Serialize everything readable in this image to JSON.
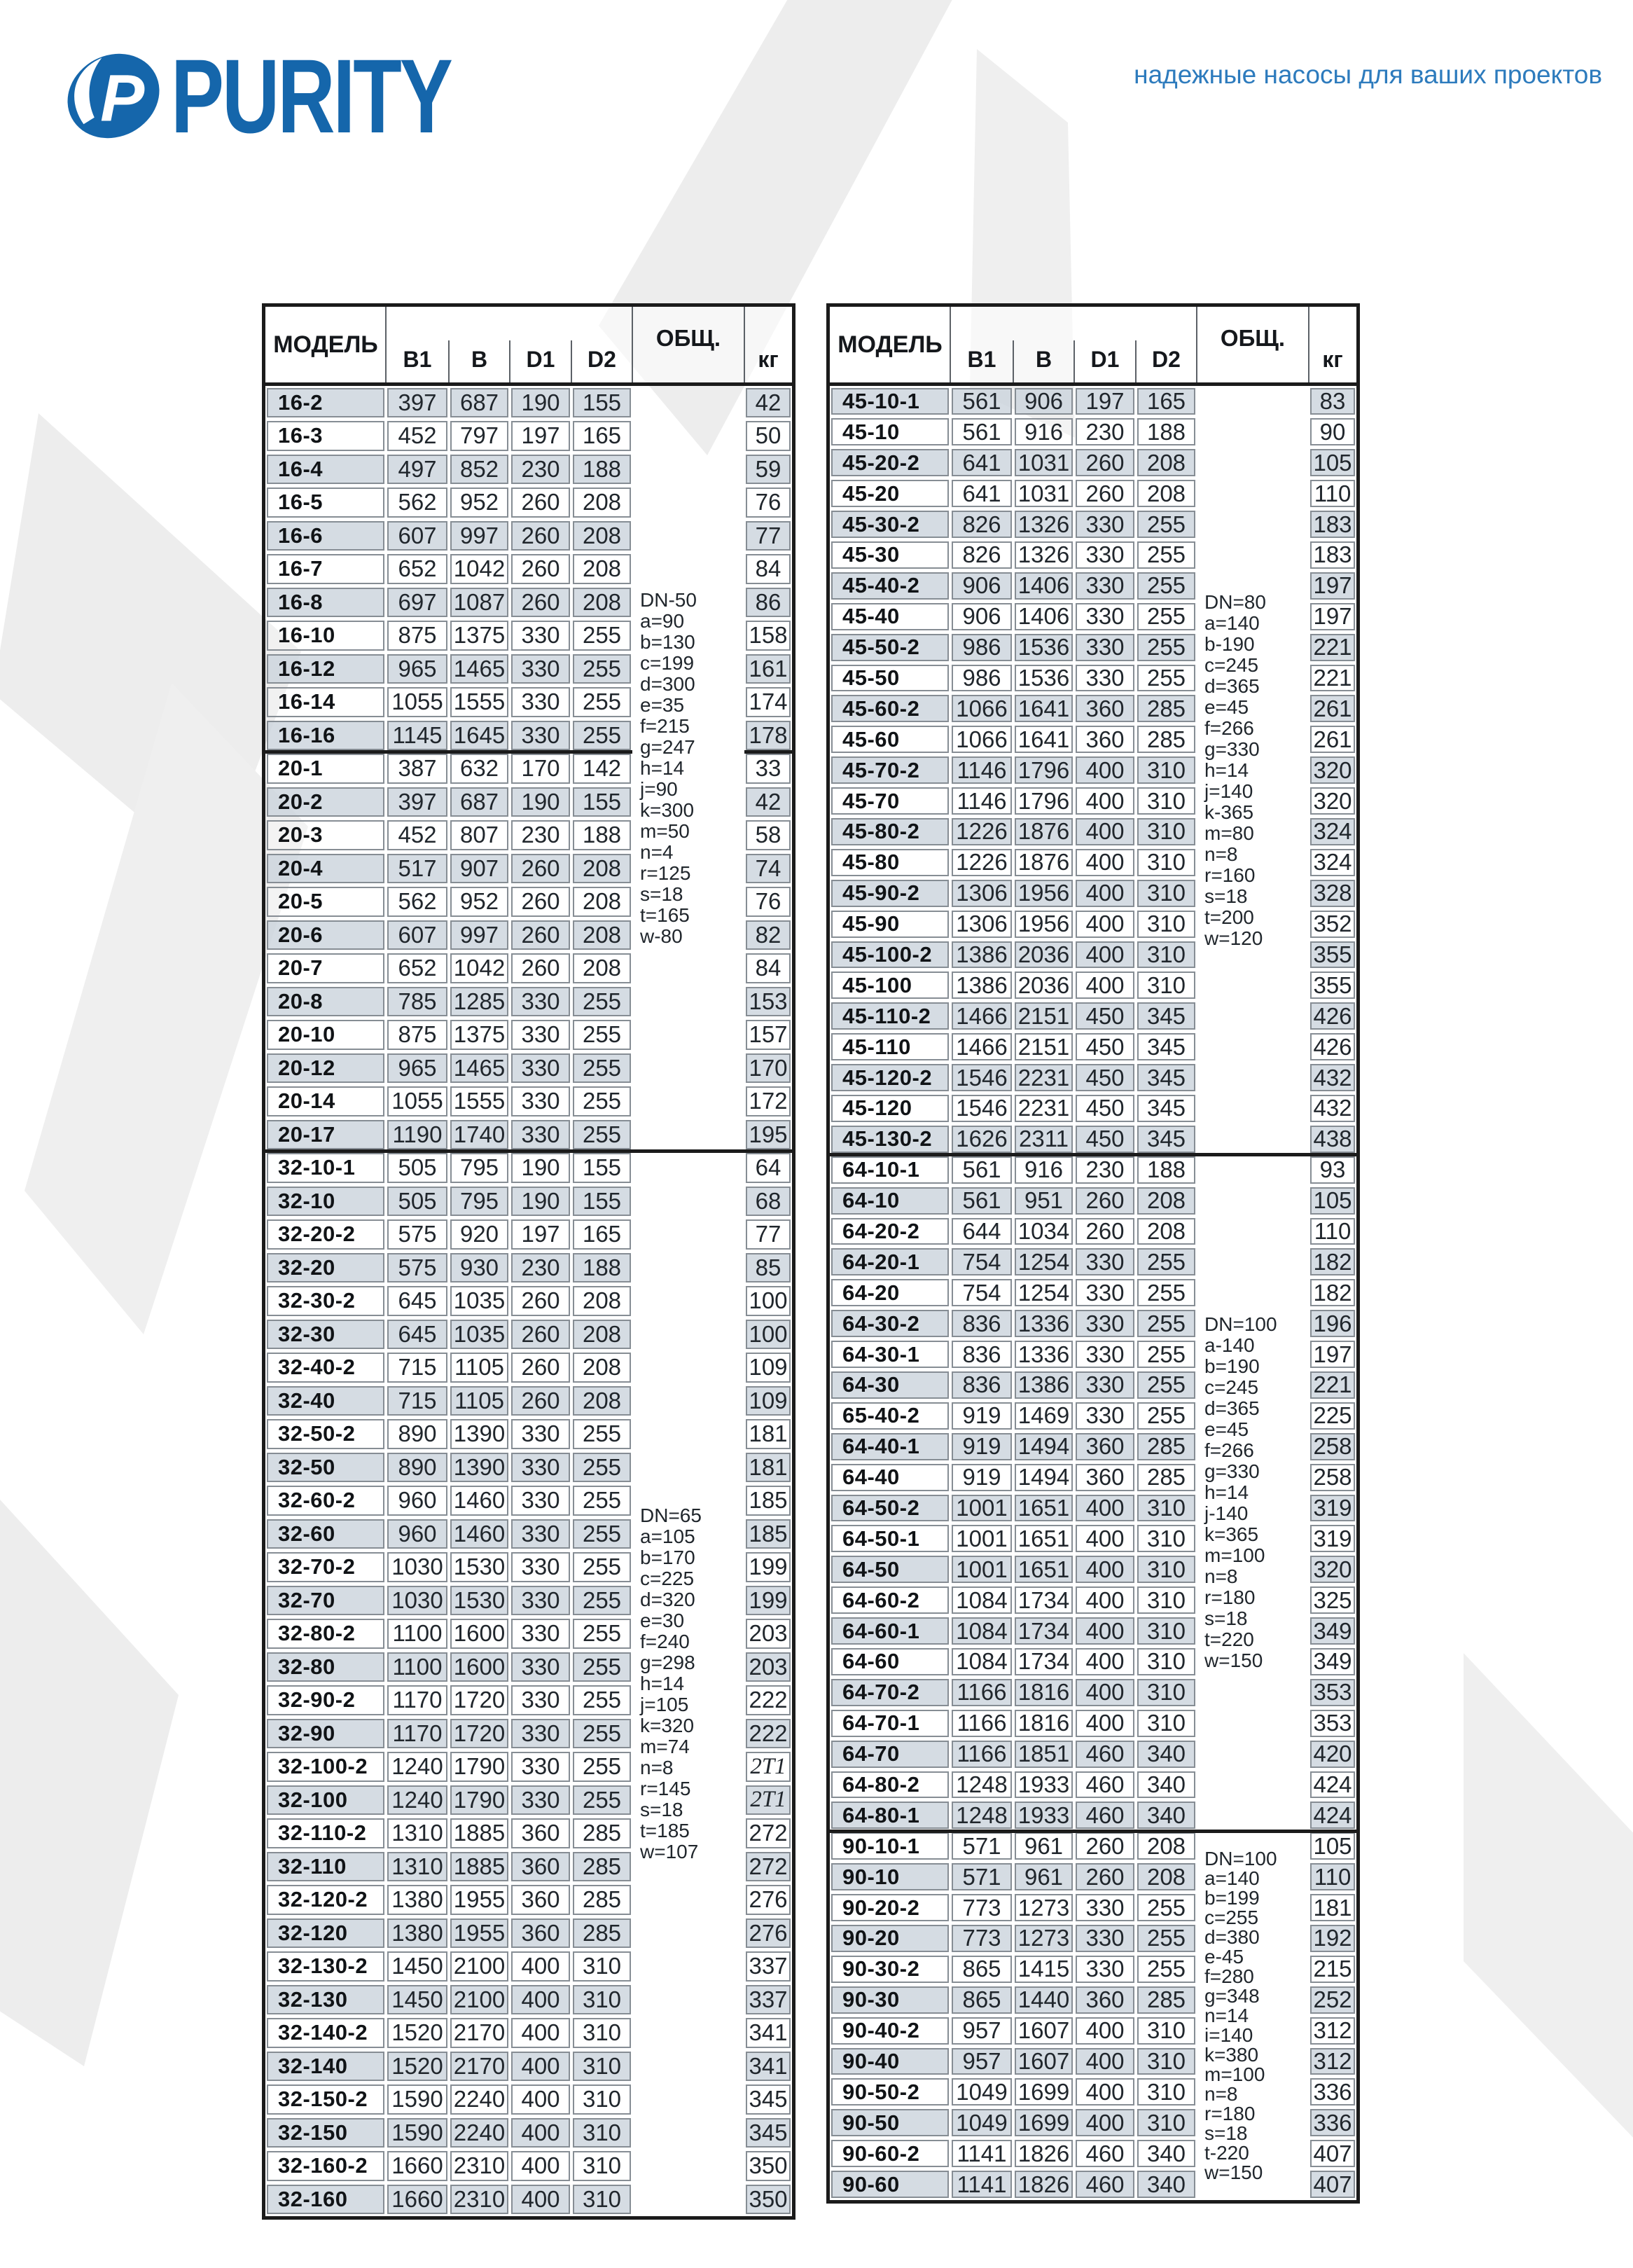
{
  "page": {
    "logo_text": "PURITY",
    "tagline": "надежные насосы для ваших проектов"
  },
  "colors": {
    "brand_blue": "#1566ab",
    "tagline_blue": "#2d7bbd",
    "row_shade": "#d3dae1",
    "cell_border_gray": "#868d94",
    "table_border_black": "#1b1b1b",
    "watermark_gray": "#ededed"
  },
  "table_header": {
    "model": "МОДЕЛЬ",
    "b1": "B1",
    "b": "B",
    "d1": "D1",
    "d2": "D2",
    "obsh": "ОБЩ.",
    "kg": "кг"
  },
  "left_table": {
    "rows": [
      [
        "16-2",
        "397",
        "687",
        "190",
        "155",
        "42"
      ],
      [
        "16-3",
        "452",
        "797",
        "197",
        "165",
        "50"
      ],
      [
        "16-4",
        "497",
        "852",
        "230",
        "188",
        "59"
      ],
      [
        "16-5",
        "562",
        "952",
        "260",
        "208",
        "76"
      ],
      [
        "16-6",
        "607",
        "997",
        "260",
        "208",
        "77"
      ],
      [
        "16-7",
        "652",
        "1042",
        "260",
        "208",
        "84"
      ],
      [
        "16-8",
        "697",
        "1087",
        "260",
        "208",
        "86"
      ],
      [
        "16-10",
        "875",
        "1375",
        "330",
        "255",
        "158"
      ],
      [
        "16-12",
        "965",
        "1465",
        "330",
        "255",
        "161"
      ],
      [
        "16-14",
        "1055",
        "1555",
        "330",
        "255",
        "174"
      ],
      [
        "16-16",
        "1145",
        "1645",
        "330",
        "255",
        "178"
      ],
      [
        "20-1",
        "387",
        "632",
        "170",
        "142",
        "33"
      ],
      [
        "20-2",
        "397",
        "687",
        "190",
        "155",
        "42"
      ],
      [
        "20-3",
        "452",
        "807",
        "230",
        "188",
        "58"
      ],
      [
        "20-4",
        "517",
        "907",
        "260",
        "208",
        "74"
      ],
      [
        "20-5",
        "562",
        "952",
        "260",
        "208",
        "76"
      ],
      [
        "20-6",
        "607",
        "997",
        "260",
        "208",
        "82"
      ],
      [
        "20-7",
        "652",
        "1042",
        "260",
        "208",
        "84"
      ],
      [
        "20-8",
        "785",
        "1285",
        "330",
        "255",
        "153"
      ],
      [
        "20-10",
        "875",
        "1375",
        "330",
        "255",
        "157"
      ],
      [
        "20-12",
        "965",
        "1465",
        "330",
        "255",
        "170"
      ],
      [
        "20-14",
        "1055",
        "1555",
        "330",
        "255",
        "172"
      ],
      [
        "20-17",
        "1190",
        "1740",
        "330",
        "255",
        "195"
      ],
      [
        "32-10-1",
        "505",
        "795",
        "190",
        "155",
        "64"
      ],
      [
        "32-10",
        "505",
        "795",
        "190",
        "155",
        "68"
      ],
      [
        "32-20-2",
        "575",
        "920",
        "197",
        "165",
        "77"
      ],
      [
        "32-20",
        "575",
        "930",
        "230",
        "188",
        "85"
      ],
      [
        "32-30-2",
        "645",
        "1035",
        "260",
        "208",
        "100"
      ],
      [
        "32-30",
        "645",
        "1035",
        "260",
        "208",
        "100"
      ],
      [
        "32-40-2",
        "715",
        "1105",
        "260",
        "208",
        "109"
      ],
      [
        "32-40",
        "715",
        "1105",
        "260",
        "208",
        "109"
      ],
      [
        "32-50-2",
        "890",
        "1390",
        "330",
        "255",
        "181"
      ],
      [
        "32-50",
        "890",
        "1390",
        "330",
        "255",
        "181"
      ],
      [
        "32-60-2",
        "960",
        "1460",
        "330",
        "255",
        "185"
      ],
      [
        "32-60",
        "960",
        "1460",
        "330",
        "255",
        "185"
      ],
      [
        "32-70-2",
        "1030",
        "1530",
        "330",
        "255",
        "199"
      ],
      [
        "32-70",
        "1030",
        "1530",
        "330",
        "255",
        "199"
      ],
      [
        "32-80-2",
        "1100",
        "1600",
        "330",
        "255",
        "203"
      ],
      [
        "32-80",
        "1100",
        "1600",
        "330",
        "255",
        "203"
      ],
      [
        "32-90-2",
        "1170",
        "1720",
        "330",
        "255",
        "222"
      ],
      [
        "32-90",
        "1170",
        "1720",
        "330",
        "255",
        "222"
      ],
      [
        "32-100-2",
        "1240",
        "1790",
        "330",
        "255",
        "2T1"
      ],
      [
        "32-100",
        "1240",
        "1790",
        "330",
        "255",
        "2T1"
      ],
      [
        "32-110-2",
        "1310",
        "1885",
        "360",
        "285",
        "272"
      ],
      [
        "32-110",
        "1310",
        "1885",
        "360",
        "285",
        "272"
      ],
      [
        "32-120-2",
        "1380",
        "1955",
        "360",
        "285",
        "276"
      ],
      [
        "32-120",
        "1380",
        "1955",
        "360",
        "285",
        "276"
      ],
      [
        "32-130-2",
        "1450",
        "2100",
        "400",
        "310",
        "337"
      ],
      [
        "32-130",
        "1450",
        "2100",
        "400",
        "310",
        "337"
      ],
      [
        "32-140-2",
        "1520",
        "2170",
        "400",
        "310",
        "341"
      ],
      [
        "32-140",
        "1520",
        "2170",
        "400",
        "310",
        "341"
      ],
      [
        "32-150-2",
        "1590",
        "2240",
        "400",
        "310",
        "345"
      ],
      [
        "32-150",
        "1590",
        "2240",
        "400",
        "310",
        "345"
      ],
      [
        "32-160-2",
        "1660",
        "2310",
        "400",
        "310",
        "350"
      ],
      [
        "32-160",
        "1660",
        "2310",
        "400",
        "310",
        "350"
      ]
    ],
    "groups": [
      {
        "start": 0,
        "end": 22,
        "obsh_lines": [
          "DN-50",
          "a=90",
          "b=130",
          "c=199",
          "d=300",
          "e=35",
          "f=215",
          "g=247",
          "h=14",
          "j=90",
          "k=300",
          "m=50",
          "n=4",
          "r=125",
          "s=18",
          "t=165",
          "w-80"
        ]
      },
      {
        "start": 23,
        "end": 54,
        "obsh_lines": [
          "DN=65",
          "a=105",
          "b=170",
          "c=225",
          "d=320",
          "e=30",
          "f=240",
          "g=298",
          "h=14",
          "j=105",
          "k=320",
          "m=74",
          "n=8",
          "r=145",
          "s=18",
          "t=185",
          "w=107"
        ]
      }
    ],
    "separators": [
      {
        "after_row": 10,
        "full": false
      },
      {
        "after_row": 22,
        "full": true
      }
    ]
  },
  "right_table": {
    "rows": [
      [
        "45-10-1",
        "561",
        "906",
        "197",
        "165",
        "83"
      ],
      [
        "45-10",
        "561",
        "916",
        "230",
        "188",
        "90"
      ],
      [
        "45-20-2",
        "641",
        "1031",
        "260",
        "208",
        "105"
      ],
      [
        "45-20",
        "641",
        "1031",
        "260",
        "208",
        "110"
      ],
      [
        "45-30-2",
        "826",
        "1326",
        "330",
        "255",
        "183"
      ],
      [
        "45-30",
        "826",
        "1326",
        "330",
        "255",
        "183"
      ],
      [
        "45-40-2",
        "906",
        "1406",
        "330",
        "255",
        "197"
      ],
      [
        "45-40",
        "906",
        "1406",
        "330",
        "255",
        "197"
      ],
      [
        "45-50-2",
        "986",
        "1536",
        "330",
        "255",
        "221"
      ],
      [
        "45-50",
        "986",
        "1536",
        "330",
        "255",
        "221"
      ],
      [
        "45-60-2",
        "1066",
        "1641",
        "360",
        "285",
        "261"
      ],
      [
        "45-60",
        "1066",
        "1641",
        "360",
        "285",
        "261"
      ],
      [
        "45-70-2",
        "1146",
        "1796",
        "400",
        "310",
        "320"
      ],
      [
        "45-70",
        "1146",
        "1796",
        "400",
        "310",
        "320"
      ],
      [
        "45-80-2",
        "1226",
        "1876",
        "400",
        "310",
        "324"
      ],
      [
        "45-80",
        "1226",
        "1876",
        "400",
        "310",
        "324"
      ],
      [
        "45-90-2",
        "1306",
        "1956",
        "400",
        "310",
        "328"
      ],
      [
        "45-90",
        "1306",
        "1956",
        "400",
        "310",
        "352"
      ],
      [
        "45-100-2",
        "1386",
        "2036",
        "400",
        "310",
        "355"
      ],
      [
        "45-100",
        "1386",
        "2036",
        "400",
        "310",
        "355"
      ],
      [
        "45-110-2",
        "1466",
        "2151",
        "450",
        "345",
        "426"
      ],
      [
        "45-110",
        "1466",
        "2151",
        "450",
        "345",
        "426"
      ],
      [
        "45-120-2",
        "1546",
        "2231",
        "450",
        "345",
        "432"
      ],
      [
        "45-120",
        "1546",
        "2231",
        "450",
        "345",
        "432"
      ],
      [
        "45-130-2",
        "1626",
        "2311",
        "450",
        "345",
        "438"
      ],
      [
        "64-10-1",
        "561",
        "916",
        "230",
        "188",
        "93"
      ],
      [
        "64-10",
        "561",
        "951",
        "260",
        "208",
        "105"
      ],
      [
        "64-20-2",
        "644",
        "1034",
        "260",
        "208",
        "110"
      ],
      [
        "64-20-1",
        "754",
        "1254",
        "330",
        "255",
        "182"
      ],
      [
        "64-20",
        "754",
        "1254",
        "330",
        "255",
        "182"
      ],
      [
        "64-30-2",
        "836",
        "1336",
        "330",
        "255",
        "196"
      ],
      [
        "64-30-1",
        "836",
        "1336",
        "330",
        "255",
        "197"
      ],
      [
        "64-30",
        "836",
        "1386",
        "330",
        "255",
        "221"
      ],
      [
        "65-40-2",
        "919",
        "1469",
        "330",
        "255",
        "225"
      ],
      [
        "64-40-1",
        "919",
        "1494",
        "360",
        "285",
        "258"
      ],
      [
        "64-40",
        "919",
        "1494",
        "360",
        "285",
        "258"
      ],
      [
        "64-50-2",
        "1001",
        "1651",
        "400",
        "310",
        "319"
      ],
      [
        "64-50-1",
        "1001",
        "1651",
        "400",
        "310",
        "319"
      ],
      [
        "64-50",
        "1001",
        "1651",
        "400",
        "310",
        "320"
      ],
      [
        "64-60-2",
        "1084",
        "1734",
        "400",
        "310",
        "325"
      ],
      [
        "64-60-1",
        "1084",
        "1734",
        "400",
        "310",
        "349"
      ],
      [
        "64-60",
        "1084",
        "1734",
        "400",
        "310",
        "349"
      ],
      [
        "64-70-2",
        "1166",
        "1816",
        "400",
        "310",
        "353"
      ],
      [
        "64-70-1",
        "1166",
        "1816",
        "400",
        "310",
        "353"
      ],
      [
        "64-70",
        "1166",
        "1851",
        "460",
        "340",
        "420"
      ],
      [
        "64-80-2",
        "1248",
        "1933",
        "460",
        "340",
        "424"
      ],
      [
        "64-80-1",
        "1248",
        "1933",
        "460",
        "340",
        "424"
      ],
      [
        "90-10-1",
        "571",
        "961",
        "260",
        "208",
        "105"
      ],
      [
        "90-10",
        "571",
        "961",
        "260",
        "208",
        "110"
      ],
      [
        "90-20-2",
        "773",
        "1273",
        "330",
        "255",
        "181"
      ],
      [
        "90-20",
        "773",
        "1273",
        "330",
        "255",
        "192"
      ],
      [
        "90-30-2",
        "865",
        "1415",
        "330",
        "255",
        "215"
      ],
      [
        "90-30",
        "865",
        "1440",
        "360",
        "285",
        "252"
      ],
      [
        "90-40-2",
        "957",
        "1607",
        "400",
        "310",
        "312"
      ],
      [
        "90-40",
        "957",
        "1607",
        "400",
        "310",
        "312"
      ],
      [
        "90-50-2",
        "1049",
        "1699",
        "400",
        "310",
        "336"
      ],
      [
        "90-50",
        "1049",
        "1699",
        "400",
        "310",
        "336"
      ],
      [
        "90-60-2",
        "1141",
        "1826",
        "460",
        "340",
        "407"
      ],
      [
        "90-60",
        "1141",
        "1826",
        "460",
        "340",
        "407"
      ]
    ],
    "groups": [
      {
        "start": 0,
        "end": 24,
        "obsh_lines": [
          "DN=80",
          "a=140",
          "b-190",
          "c=245",
          "d=365",
          "e=45",
          "f=266",
          "g=330",
          "h=14",
          "j=140",
          "k-365",
          "m=80",
          "n=8",
          "r=160",
          "s=18",
          "t=200",
          "w=120"
        ]
      },
      {
        "start": 25,
        "end": 46,
        "obsh_lines": [
          "DN=100",
          "a-140",
          "b=190",
          "c=245",
          "d=365",
          "e=45",
          "f=266",
          "g=330",
          "h=14",
          "j-140",
          "k=365",
          "m=100",
          "n=8",
          "r=180",
          "s=18",
          "t=220",
          "w=150"
        ]
      },
      {
        "start": 47,
        "end": 58,
        "obsh_lines": [
          "DN=100",
          "a=140",
          "b=199",
          "c=255",
          "d=380",
          "e-45",
          "f=280",
          "g=348",
          "n=14",
          "i=140",
          "k=380",
          "m=100",
          "n=8",
          "r=180",
          "s=18",
          "t-220",
          "w=150"
        ]
      }
    ],
    "separators": [
      {
        "after_row": 24,
        "full": true
      },
      {
        "after_row": 46,
        "full": true
      }
    ]
  }
}
